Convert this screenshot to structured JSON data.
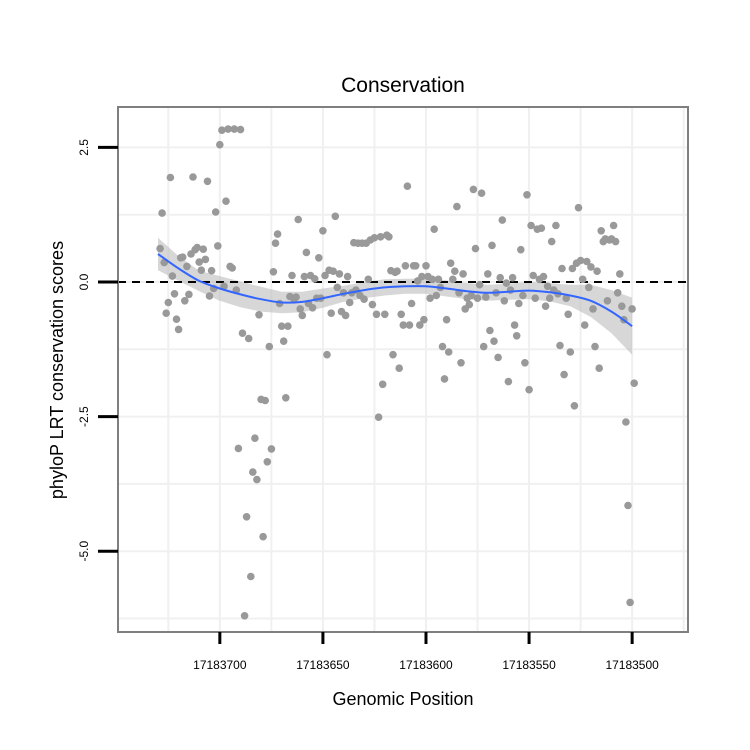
{
  "chart_data": {
    "type": "scatter",
    "title": "Conservation",
    "xlabel": "Genomic Position",
    "ylabel": "phyloP LRT conservation scores",
    "xlim": [
      17183749.4,
      17183472.9
    ],
    "ylim": [
      -6.5,
      3.25
    ],
    "x_reversed": true,
    "x_ticks": [
      17183700,
      17183650,
      17183600,
      17183550,
      17183500
    ],
    "x_tick_labels": [
      "17183700",
      "17183650",
      "17183600",
      "17183550",
      "17183500"
    ],
    "y_ticks": [
      2.5,
      0,
      -2.5,
      -5
    ],
    "y_tick_labels": [
      "2.5",
      "0.0",
      "-2.5",
      "-5.0"
    ],
    "reference_line": {
      "y": 0,
      "style": "dashed",
      "color": "#000000"
    },
    "grid": true,
    "colors": {
      "points": "#999999",
      "smooth": "#3366ff",
      "ribbon": "#bdbdbd",
      "panel_border": "#7f7f7f"
    },
    "points": [
      {
        "x": 17183729,
        "y": 0.62
      },
      {
        "x": 17183728,
        "y": 1.28
      },
      {
        "x": 17183727,
        "y": 0.36
      },
      {
        "x": 17183726,
        "y": -0.58
      },
      {
        "x": 17183725,
        "y": -0.38
      },
      {
        "x": 17183724,
        "y": 1.94
      },
      {
        "x": 17183723,
        "y": 0.11
      },
      {
        "x": 17183722,
        "y": -0.22
      },
      {
        "x": 17183721,
        "y": -0.69
      },
      {
        "x": 17183720,
        "y": -0.88
      },
      {
        "x": 17183719,
        "y": 0.45
      },
      {
        "x": 17183718,
        "y": 0.46
      },
      {
        "x": 17183717,
        "y": -0.35
      },
      {
        "x": 17183716,
        "y": 0.29
      },
      {
        "x": 17183715,
        "y": -0.23
      },
      {
        "x": 17183714,
        "y": 0.52
      },
      {
        "x": 17183713,
        "y": 1.95
      },
      {
        "x": 17183712,
        "y": 0.6
      },
      {
        "x": 17183711,
        "y": 0.64
      },
      {
        "x": 17183710,
        "y": 0.37
      },
      {
        "x": 17183709,
        "y": 0.22
      },
      {
        "x": 17183708,
        "y": 0.61
      },
      {
        "x": 17183707,
        "y": 0.42
      },
      {
        "x": 17183706,
        "y": 1.87
      },
      {
        "x": 17183705,
        "y": -0.26
      },
      {
        "x": 17183704,
        "y": 0.21
      },
      {
        "x": 17183703,
        "y": -0.12
      },
      {
        "x": 17183702,
        "y": 1.3
      },
      {
        "x": 17183701,
        "y": 0.67
      },
      {
        "x": 17183700,
        "y": 2.55
      },
      {
        "x": 17183699,
        "y": 2.82
      },
      {
        "x": 17183698,
        "y": -0.08
      },
      {
        "x": 17183697,
        "y": 1.5
      },
      {
        "x": 17183696,
        "y": 2.84
      },
      {
        "x": 17183695,
        "y": 0.29
      },
      {
        "x": 17183694,
        "y": 0.26
      },
      {
        "x": 17183693,
        "y": 2.84
      },
      {
        "x": 17183692,
        "y": -0.15
      },
      {
        "x": 17183691,
        "y": -3.09
      },
      {
        "x": 17183690,
        "y": 2.83
      },
      {
        "x": 17183689,
        "y": -0.95
      },
      {
        "x": 17183688,
        "y": -6.2
      },
      {
        "x": 17183687,
        "y": -4.36
      },
      {
        "x": 17183686,
        "y": -1.05
      },
      {
        "x": 17183685,
        "y": -5.47
      },
      {
        "x": 17183684,
        "y": -3.53
      },
      {
        "x": 17183683,
        "y": -2.9
      },
      {
        "x": 17183682,
        "y": -3.67
      },
      {
        "x": 17183681,
        "y": -0.61
      },
      {
        "x": 17183680,
        "y": -2.18
      },
      {
        "x": 17183679,
        "y": -4.73
      },
      {
        "x": 17183678,
        "y": -2.2
      },
      {
        "x": 17183677,
        "y": -3.34
      },
      {
        "x": 17183676,
        "y": -1.2
      },
      {
        "x": 17183675,
        "y": -3.1
      },
      {
        "x": 17183674,
        "y": 0.19
      },
      {
        "x": 17183673,
        "y": 0.72
      },
      {
        "x": 17183672,
        "y": 0.89
      },
      {
        "x": 17183671,
        "y": -0.4
      },
      {
        "x": 17183670,
        "y": -0.82
      },
      {
        "x": 17183669,
        "y": -1.1
      },
      {
        "x": 17183668,
        "y": -2.15
      },
      {
        "x": 17183667,
        "y": -0.82
      },
      {
        "x": 17183666,
        "y": -0.27
      },
      {
        "x": 17183665,
        "y": 0.12
      },
      {
        "x": 17183664,
        "y": -0.32
      },
      {
        "x": 17183663,
        "y": -0.28
      },
      {
        "x": 17183662,
        "y": 1.16
      },
      {
        "x": 17183661,
        "y": -0.5
      },
      {
        "x": 17183660,
        "y": -0.62
      },
      {
        "x": 17183659,
        "y": 0.1
      },
      {
        "x": 17183658,
        "y": 0.55
      },
      {
        "x": 17183657,
        "y": -0.4
      },
      {
        "x": 17183656,
        "y": 0.12
      },
      {
        "x": 17183655,
        "y": -0.48
      },
      {
        "x": 17183654,
        "y": 0.06
      },
      {
        "x": 17183653,
        "y": -0.3
      },
      {
        "x": 17183652,
        "y": 0.45
      },
      {
        "x": 17183651,
        "y": -0.3
      },
      {
        "x": 17183650,
        "y": 0.95
      },
      {
        "x": 17183649,
        "y": 0.12
      },
      {
        "x": 17183648,
        "y": -1.35
      },
      {
        "x": 17183647,
        "y": 0.22
      },
      {
        "x": 17183646,
        "y": -0.58
      },
      {
        "x": 17183645,
        "y": 0.2
      },
      {
        "x": 17183644,
        "y": 1.22
      },
      {
        "x": 17183643,
        "y": -0.1
      },
      {
        "x": 17183642,
        "y": 0.15
      },
      {
        "x": 17183641,
        "y": -0.55
      },
      {
        "x": 17183640,
        "y": -0.2
      },
      {
        "x": 17183639,
        "y": -0.62
      },
      {
        "x": 17183638,
        "y": 0.1
      },
      {
        "x": 17183637,
        "y": -0.38
      },
      {
        "x": 17183636,
        "y": -0.2
      },
      {
        "x": 17183635,
        "y": 0.73
      },
      {
        "x": 17183634,
        "y": -0.15
      },
      {
        "x": 17183633,
        "y": 0.72
      },
      {
        "x": 17183632,
        "y": -0.25
      },
      {
        "x": 17183631,
        "y": 0.72
      },
      {
        "x": 17183630,
        "y": -0.32
      },
      {
        "x": 17183629,
        "y": 0.72
      },
      {
        "x": 17183628,
        "y": 0.05
      },
      {
        "x": 17183627,
        "y": 0.78
      },
      {
        "x": 17183626,
        "y": -0.42
      },
      {
        "x": 17183625,
        "y": 0.82
      },
      {
        "x": 17183624,
        "y": -0.6
      },
      {
        "x": 17183623,
        "y": -2.51
      },
      {
        "x": 17183622,
        "y": 0.84
      },
      {
        "x": 17183621,
        "y": -1.9
      },
      {
        "x": 17183620,
        "y": -0.6
      },
      {
        "x": 17183619,
        "y": 0.87
      },
      {
        "x": 17183618,
        "y": 0.84
      },
      {
        "x": 17183617,
        "y": 0.21
      },
      {
        "x": 17183616,
        "y": -1.35
      },
      {
        "x": 17183615,
        "y": 0.18
      },
      {
        "x": 17183614,
        "y": 0.2
      },
      {
        "x": 17183613,
        "y": -1.6
      },
      {
        "x": 17183612,
        "y": -0.6
      },
      {
        "x": 17183611,
        "y": -0.8
      },
      {
        "x": 17183610,
        "y": 0.3
      },
      {
        "x": 17183609,
        "y": 1.78
      },
      {
        "x": 17183608,
        "y": -0.8
      },
      {
        "x": 17183607,
        "y": -0.4
      },
      {
        "x": 17183606,
        "y": 0.3
      },
      {
        "x": 17183605,
        "y": 0.3
      },
      {
        "x": 17183604,
        "y": 0.02
      },
      {
        "x": 17183603,
        "y": -0.8
      },
      {
        "x": 17183602,
        "y": 0.1
      },
      {
        "x": 17183601,
        "y": -0.7
      },
      {
        "x": 17183600,
        "y": 0.3
      },
      {
        "x": 17183599,
        "y": 0.1
      },
      {
        "x": 17183598,
        "y": -0.3
      },
      {
        "x": 17183597,
        "y": 0.05
      },
      {
        "x": 17183596,
        "y": 0.98
      },
      {
        "x": 17183595,
        "y": -0.25
      },
      {
        "x": 17183594,
        "y": 0.05
      },
      {
        "x": 17183593,
        "y": -0.1
      },
      {
        "x": 17183592,
        "y": -1.2
      },
      {
        "x": 17183591,
        "y": -1.8
      },
      {
        "x": 17183590,
        "y": -0.7
      },
      {
        "x": 17183589,
        "y": -1.3
      },
      {
        "x": 17183588,
        "y": 0.35
      },
      {
        "x": 17183587,
        "y": 0.05
      },
      {
        "x": 17183586,
        "y": 0.2
      },
      {
        "x": 17183585,
        "y": 1.4
      },
      {
        "x": 17183584,
        "y": -0.2
      },
      {
        "x": 17183583,
        "y": -1.5
      },
      {
        "x": 17183582,
        "y": 0.15
      },
      {
        "x": 17183581,
        "y": -0.5
      },
      {
        "x": 17183580,
        "y": -0.3
      },
      {
        "x": 17183579,
        "y": -0.42
      },
      {
        "x": 17183578,
        "y": -0.25
      },
      {
        "x": 17183577,
        "y": 1.72
      },
      {
        "x": 17183576,
        "y": 0.62
      },
      {
        "x": 17183575,
        "y": -0.3
      },
      {
        "x": 17183574,
        "y": -0.05
      },
      {
        "x": 17183573,
        "y": 1.65
      },
      {
        "x": 17183572,
        "y": -1.2
      },
      {
        "x": 17183571,
        "y": -0.28
      },
      {
        "x": 17183570,
        "y": 0.15
      },
      {
        "x": 17183569,
        "y": -0.9
      },
      {
        "x": 17183568,
        "y": 0.68
      },
      {
        "x": 17183567,
        "y": -1.1
      },
      {
        "x": 17183566,
        "y": -0.2
      },
      {
        "x": 17183565,
        "y": -1.4
      },
      {
        "x": 17183564,
        "y": 0.08
      },
      {
        "x": 17183563,
        "y": 1.15
      },
      {
        "x": 17183562,
        "y": -0.35
      },
      {
        "x": 17183561,
        "y": -0.02
      },
      {
        "x": 17183560,
        "y": -1.85
      },
      {
        "x": 17183559,
        "y": -0.15
      },
      {
        "x": 17183558,
        "y": 0.08
      },
      {
        "x": 17183557,
        "y": -0.8
      },
      {
        "x": 17183556,
        "y": -1.0
      },
      {
        "x": 17183555,
        "y": -0.4
      },
      {
        "x": 17183554,
        "y": 0.6
      },
      {
        "x": 17183553,
        "y": -0.25
      },
      {
        "x": 17183552,
        "y": -1.5
      },
      {
        "x": 17183551,
        "y": 1.62
      },
      {
        "x": 17183550,
        "y": -2.0
      },
      {
        "x": 17183549,
        "y": 1.05
      },
      {
        "x": 17183548,
        "y": 0.12
      },
      {
        "x": 17183547,
        "y": -0.3
      },
      {
        "x": 17183546,
        "y": 0.98
      },
      {
        "x": 17183545,
        "y": 0.05
      },
      {
        "x": 17183544,
        "y": 1.0
      },
      {
        "x": 17183543,
        "y": 0.1
      },
      {
        "x": 17183542,
        "y": -0.45
      },
      {
        "x": 17183541,
        "y": -0.08
      },
      {
        "x": 17183540,
        "y": -0.3
      },
      {
        "x": 17183539,
        "y": 0.75
      },
      {
        "x": 17183538,
        "y": -0.15
      },
      {
        "x": 17183537,
        "y": 1.05
      },
      {
        "x": 17183536,
        "y": -0.22
      },
      {
        "x": 17183535,
        "y": -1.18
      },
      {
        "x": 17183534,
        "y": 0.25
      },
      {
        "x": 17183533,
        "y": -1.72
      },
      {
        "x": 17183532,
        "y": -0.3
      },
      {
        "x": 17183531,
        "y": -0.6
      },
      {
        "x": 17183530,
        "y": -1.3
      },
      {
        "x": 17183529,
        "y": 0.25
      },
      {
        "x": 17183528,
        "y": -2.3
      },
      {
        "x": 17183527,
        "y": 0.35
      },
      {
        "x": 17183526,
        "y": 1.38
      },
      {
        "x": 17183525,
        "y": 0.4
      },
      {
        "x": 17183524,
        "y": 0.05
      },
      {
        "x": 17183523,
        "y": -0.8
      },
      {
        "x": 17183522,
        "y": 0.38
      },
      {
        "x": 17183521,
        "y": -0.1
      },
      {
        "x": 17183520,
        "y": 0.28
      },
      {
        "x": 17183519,
        "y": -0.5
      },
      {
        "x": 17183518,
        "y": -1.2
      },
      {
        "x": 17183517,
        "y": 0.2
      },
      {
        "x": 17183516,
        "y": -1.6
      },
      {
        "x": 17183515,
        "y": 0.95
      },
      {
        "x": 17183514,
        "y": 0.75
      },
      {
        "x": 17183513,
        "y": 0.8
      },
      {
        "x": 17183512,
        "y": -0.35
      },
      {
        "x": 17183511,
        "y": 0.78
      },
      {
        "x": 17183510,
        "y": 0.8
      },
      {
        "x": 17183509,
        "y": 1.05
      },
      {
        "x": 17183508,
        "y": 0.75
      },
      {
        "x": 17183507,
        "y": -0.2
      },
      {
        "x": 17183506,
        "y": 0.15
      },
      {
        "x": 17183505,
        "y": -0.45
      },
      {
        "x": 17183504,
        "y": -0.7
      },
      {
        "x": 17183503,
        "y": -2.6
      },
      {
        "x": 17183502,
        "y": -4.15
      },
      {
        "x": 17183501,
        "y": -5.95
      },
      {
        "x": 17183500,
        "y": -0.5
      },
      {
        "x": 17183499,
        "y": -1.88
      }
    ],
    "smooth": {
      "x": [
        17183730,
        17183720,
        17183710,
        17183700,
        17183690,
        17183680,
        17183670,
        17183660,
        17183650,
        17183640,
        17183630,
        17183620,
        17183610,
        17183600,
        17183590,
        17183580,
        17183570,
        17183560,
        17183550,
        17183540,
        17183530,
        17183520,
        17183510,
        17183500
      ],
      "y": [
        0.52,
        0.25,
        0.02,
        -0.12,
        -0.23,
        -0.32,
        -0.38,
        -0.37,
        -0.3,
        -0.22,
        -0.15,
        -0.1,
        -0.08,
        -0.08,
        -0.12,
        -0.17,
        -0.2,
        -0.18,
        -0.16,
        -0.19,
        -0.25,
        -0.35,
        -0.55,
        -0.82
      ],
      "lower": [
        0.22,
        0.02,
        -0.17,
        -0.35,
        -0.47,
        -0.55,
        -0.58,
        -0.56,
        -0.48,
        -0.37,
        -0.3,
        -0.25,
        -0.22,
        -0.22,
        -0.27,
        -0.32,
        -0.35,
        -0.33,
        -0.32,
        -0.36,
        -0.45,
        -0.65,
        -0.95,
        -1.35
      ],
      "upper": [
        0.82,
        0.48,
        0.21,
        0.11,
        0.01,
        -0.09,
        -0.18,
        -0.18,
        -0.12,
        -0.07,
        0.0,
        0.05,
        0.06,
        0.06,
        0.03,
        -0.02,
        -0.05,
        -0.03,
        0.0,
        -0.02,
        -0.05,
        -0.05,
        -0.15,
        -0.29
      ]
    }
  }
}
